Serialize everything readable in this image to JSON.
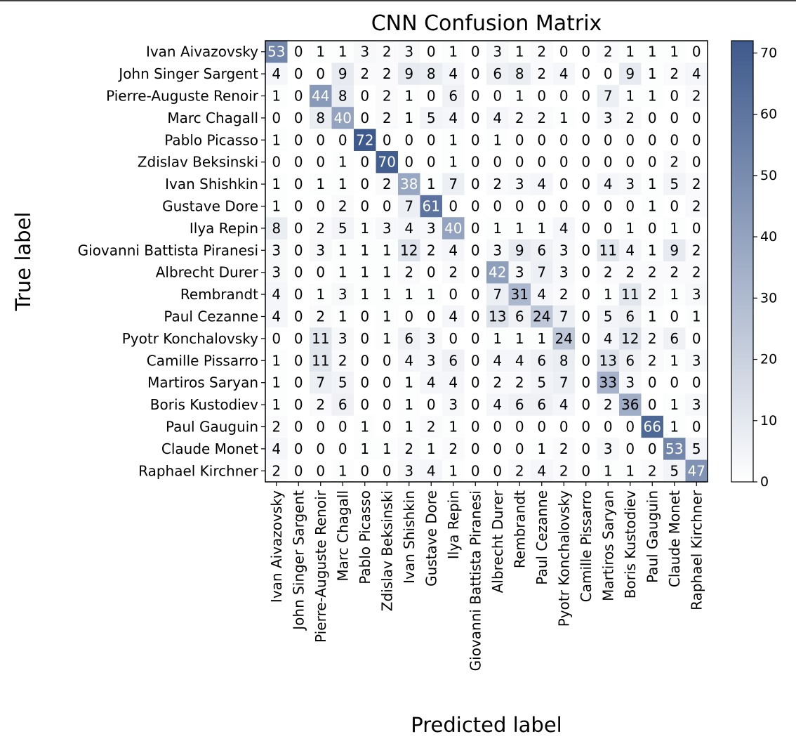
{
  "chart_data": {
    "type": "heatmap",
    "title": "CNN Confusion Matrix",
    "xlabel": "Predicted label",
    "ylabel": "True label",
    "categories": [
      "Ivan Aivazovsky",
      "John Singer Sargent",
      "Pierre-Auguste Renoir",
      "Marc Chagall",
      "Pablo Picasso",
      "Zdislav Beksinski",
      "Ivan Shishkin",
      "Gustave Dore",
      "Ilya Repin",
      "Giovanni Battista Piranesi",
      "Albrecht Durer",
      "Rembrandt",
      "Paul Cezanne",
      "Pyotr Konchalovsky",
      "Camille Pissarro",
      "Martiros Saryan",
      "Boris Kustodiev",
      "Paul Gauguin",
      "Claude Monet",
      "Raphael Kirchner"
    ],
    "matrix": [
      [
        53,
        0,
        1,
        1,
        3,
        2,
        3,
        0,
        1,
        0,
        3,
        1,
        2,
        0,
        0,
        2,
        1,
        1,
        1,
        0
      ],
      [
        4,
        0,
        0,
        9,
        2,
        2,
        9,
        8,
        4,
        0,
        6,
        8,
        2,
        4,
        0,
        0,
        9,
        1,
        2,
        4
      ],
      [
        1,
        0,
        44,
        8,
        0,
        2,
        1,
        0,
        6,
        0,
        0,
        1,
        0,
        0,
        0,
        7,
        1,
        1,
        0,
        2
      ],
      [
        0,
        0,
        8,
        40,
        0,
        2,
        1,
        5,
        4,
        0,
        4,
        2,
        2,
        1,
        0,
        3,
        2,
        0,
        0,
        0
      ],
      [
        1,
        0,
        0,
        0,
        72,
        0,
        0,
        0,
        1,
        0,
        1,
        0,
        0,
        0,
        0,
        0,
        0,
        0,
        0,
        0
      ],
      [
        0,
        0,
        0,
        1,
        0,
        70,
        0,
        0,
        1,
        0,
        0,
        0,
        0,
        0,
        0,
        0,
        0,
        0,
        2,
        0
      ],
      [
        1,
        0,
        1,
        1,
        0,
        2,
        38,
        1,
        7,
        0,
        2,
        3,
        4,
        0,
        0,
        4,
        3,
        1,
        5,
        2
      ],
      [
        1,
        0,
        0,
        2,
        0,
        0,
        7,
        61,
        0,
        0,
        0,
        0,
        0,
        0,
        0,
        0,
        0,
        1,
        0,
        2
      ],
      [
        8,
        0,
        2,
        5,
        1,
        3,
        4,
        3,
        40,
        0,
        1,
        1,
        1,
        4,
        0,
        0,
        1,
        0,
        1,
        0
      ],
      [
        3,
        0,
        3,
        1,
        1,
        1,
        12,
        2,
        4,
        0,
        3,
        9,
        6,
        3,
        0,
        11,
        4,
        1,
        9,
        2
      ],
      [
        3,
        0,
        0,
        1,
        1,
        1,
        2,
        0,
        2,
        0,
        42,
        3,
        7,
        3,
        0,
        2,
        2,
        2,
        2,
        2
      ],
      [
        4,
        0,
        1,
        3,
        1,
        1,
        1,
        1,
        0,
        0,
        7,
        31,
        4,
        2,
        0,
        1,
        11,
        2,
        1,
        3
      ],
      [
        4,
        0,
        2,
        1,
        0,
        1,
        0,
        0,
        4,
        0,
        13,
        6,
        24,
        7,
        0,
        5,
        6,
        1,
        0,
        1
      ],
      [
        0,
        0,
        11,
        3,
        0,
        1,
        6,
        3,
        0,
        0,
        1,
        1,
        1,
        24,
        0,
        4,
        12,
        2,
        6,
        0
      ],
      [
        1,
        0,
        11,
        2,
        0,
        0,
        4,
        3,
        6,
        0,
        4,
        4,
        6,
        8,
        0,
        13,
        6,
        2,
        1,
        3
      ],
      [
        1,
        0,
        7,
        5,
        0,
        0,
        1,
        4,
        4,
        0,
        2,
        2,
        5,
        7,
        0,
        33,
        3,
        0,
        0,
        0
      ],
      [
        1,
        0,
        2,
        6,
        0,
        0,
        1,
        0,
        3,
        0,
        4,
        6,
        6,
        4,
        0,
        2,
        36,
        0,
        1,
        3
      ],
      [
        2,
        0,
        0,
        0,
        1,
        0,
        1,
        2,
        1,
        0,
        0,
        0,
        0,
        0,
        0,
        0,
        0,
        66,
        1,
        0
      ],
      [
        4,
        0,
        0,
        0,
        1,
        1,
        2,
        1,
        2,
        0,
        0,
        0,
        1,
        2,
        0,
        3,
        0,
        0,
        53,
        5
      ],
      [
        2,
        0,
        0,
        1,
        0,
        0,
        3,
        4,
        1,
        0,
        0,
        2,
        4,
        2,
        0,
        1,
        1,
        2,
        5,
        47
      ]
    ],
    "colorbar": {
      "vmin": 0,
      "vmax": 72,
      "ticks": [
        0,
        10,
        20,
        30,
        40,
        50,
        60,
        70
      ],
      "color_low": "#ffffff",
      "color_high": "#3e5a8c"
    },
    "text_color_dark": "#000000",
    "text_color_light": "#ffffff"
  }
}
